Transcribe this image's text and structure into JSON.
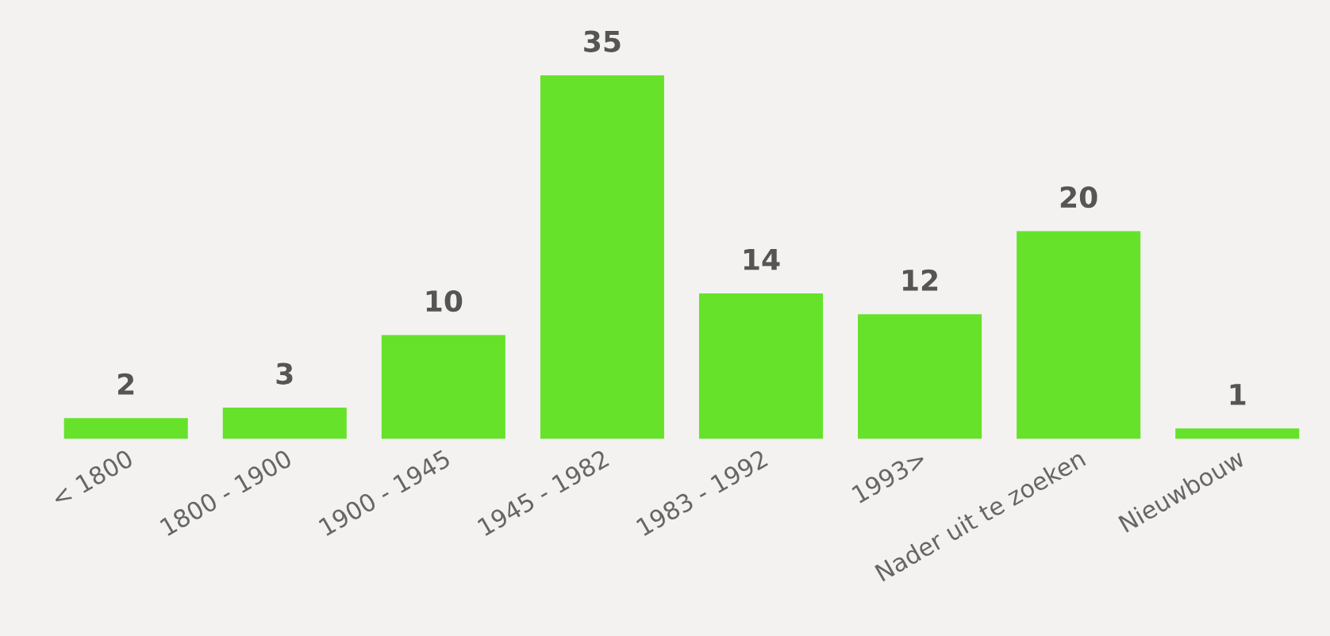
{
  "chart_data": {
    "type": "bar",
    "categories": [
      "< 1800",
      "1800 - 1900",
      "1900 - 1945",
      "1945 - 1982",
      "1983 - 1992",
      "1993>",
      "Nader uit te zoeken",
      "Nieuwbouw"
    ],
    "values": [
      2,
      3,
      10,
      35,
      14,
      12,
      20,
      1
    ],
    "color": "#66e22a",
    "data_labels": true,
    "grid": false,
    "legend": false
  }
}
